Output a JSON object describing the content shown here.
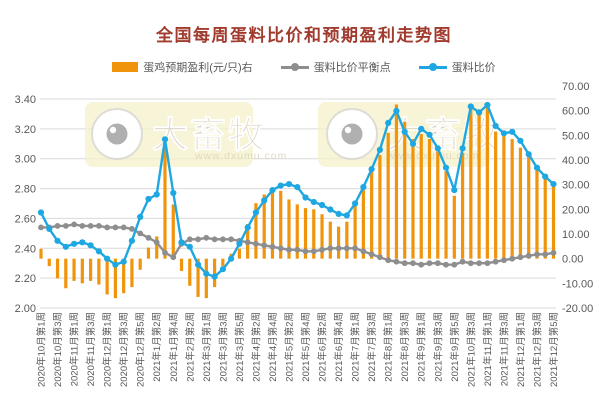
{
  "title": "全国每周蛋料比价和预期盈利走势图",
  "watermark": {
    "brand": "大畜牧",
    "url": "www.dxumu.com"
  },
  "legend": [
    {
      "label": "蛋鸡预期盈利(元/只)右"
    },
    {
      "label": "蛋料比价平衡点"
    },
    {
      "label": "蛋料比价"
    }
  ],
  "chart_data": {
    "type": "combo-bar-line",
    "title": "全国每周蛋料比价和预期盈利走势图",
    "n_points": 63,
    "x_label_note": "weekly points; tick label shown for every 2nd point",
    "x_tick_labels": [
      "2020年10月第1周",
      "2020年10月第3周",
      "2020年11月第1周",
      "2020年11月第3周",
      "2020年12月第1周",
      "2020年12月第3周",
      "2020年12月第5周",
      "2021年1月第2周",
      "2021年1月第4周",
      "2021年2月第2周",
      "2021年3月第1周",
      "2021年3月第3周",
      "2021年3月第5周",
      "2021年4月第2周",
      "2021年4月第4周",
      "2021年5月第2周",
      "2021年5月第4周",
      "2021年6月第2周",
      "2021年6月第4周",
      "2021年7月第1周",
      "2021年7月第3周",
      "2021年8月第1周",
      "2021年8月第3周",
      "2021年9月第1周",
      "2021年9月第3周",
      "2021年9月第5周",
      "2021年10月第3周",
      "2021年11月第1周",
      "2021年11月第3周",
      "2021年12月第1周",
      "2021年12月第3周",
      "2021年12月第5周"
    ],
    "left_axis": {
      "min": 2.0,
      "max": 3.4,
      "step": 0.2,
      "grid": true,
      "ticks": [
        "3.40",
        "3.20",
        "3.00",
        "2.80",
        "2.60",
        "2.40",
        "2.20",
        "2.00"
      ]
    },
    "right_axis": {
      "min": -20.0,
      "max": 70.0,
      "step": 10.0,
      "ticks": [
        "70.00",
        "60.00",
        "50.00",
        "40.00",
        "30.00",
        "20.00",
        "10.00",
        "0.00",
        "-10.00",
        "-20.00"
      ]
    },
    "legend_position": "top",
    "series": [
      {
        "name": "蛋鸡预期盈利(元/只)右",
        "type": "bar",
        "axis": "right",
        "color": "#F0940B",
        "values": [
          4,
          -3,
          -8,
          -12,
          -9,
          -10,
          -9,
          -10.5,
          -14.5,
          -16,
          -14,
          -11.5,
          -4.5,
          4.5,
          9,
          45,
          22,
          -5,
          -11,
          -15.5,
          -16,
          -11.5,
          -3,
          2,
          4,
          14,
          22.5,
          26,
          27.5,
          27.5,
          24,
          22,
          20.5,
          20,
          18,
          15,
          13,
          15,
          22,
          28,
          37.5,
          42,
          51,
          62.5,
          55.5,
          48.5,
          50.5,
          48.5,
          43.5,
          35.5,
          25.5,
          43,
          62.5,
          60,
          62.5,
          51.5,
          51,
          48.5,
          45,
          41.5,
          37,
          33.5,
          30
        ]
      },
      {
        "name": "蛋料比价平衡点",
        "type": "line",
        "axis": "left",
        "color": "#8E8E8E",
        "values": [
          2.54,
          2.54,
          2.55,
          2.55,
          2.56,
          2.55,
          2.55,
          2.55,
          2.54,
          2.54,
          2.54,
          2.53,
          2.5,
          2.47,
          2.44,
          2.37,
          2.34,
          2.43,
          2.46,
          2.46,
          2.47,
          2.46,
          2.46,
          2.46,
          2.45,
          2.44,
          2.43,
          2.42,
          2.41,
          2.4,
          2.39,
          2.39,
          2.38,
          2.38,
          2.39,
          2.4,
          2.4,
          2.4,
          2.4,
          2.38,
          2.36,
          2.34,
          2.32,
          2.31,
          2.3,
          2.3,
          2.29,
          2.3,
          2.3,
          2.29,
          2.29,
          2.31,
          2.3,
          2.3,
          2.3,
          2.31,
          2.32,
          2.33,
          2.34,
          2.35,
          2.36,
          2.36,
          2.37
        ]
      },
      {
        "name": "蛋料比价",
        "type": "line",
        "axis": "left",
        "color": "#1EA7E1",
        "values": [
          2.64,
          2.53,
          2.45,
          2.41,
          2.43,
          2.44,
          2.42,
          2.38,
          2.33,
          2.29,
          2.31,
          2.45,
          2.61,
          2.73,
          2.76,
          3.13,
          2.77,
          2.44,
          2.41,
          2.29,
          2.23,
          2.21,
          2.26,
          2.33,
          2.43,
          2.54,
          2.64,
          2.72,
          2.79,
          2.82,
          2.83,
          2.81,
          2.74,
          2.71,
          2.69,
          2.66,
          2.63,
          2.62,
          2.7,
          2.81,
          2.93,
          3.06,
          3.24,
          3.32,
          3.18,
          3.1,
          3.2,
          3.16,
          3.07,
          2.94,
          2.79,
          3.07,
          3.35,
          3.31,
          3.36,
          3.22,
          3.17,
          3.18,
          3.12,
          3.03,
          2.94,
          2.88,
          2.83
        ]
      }
    ],
    "colors": {
      "grid": "#D9D9D9",
      "axis_text": "#595959",
      "title": "#A13B2E",
      "watermark_bg": "#F5F1CB",
      "watermark_text": "#D9D1BF"
    }
  }
}
